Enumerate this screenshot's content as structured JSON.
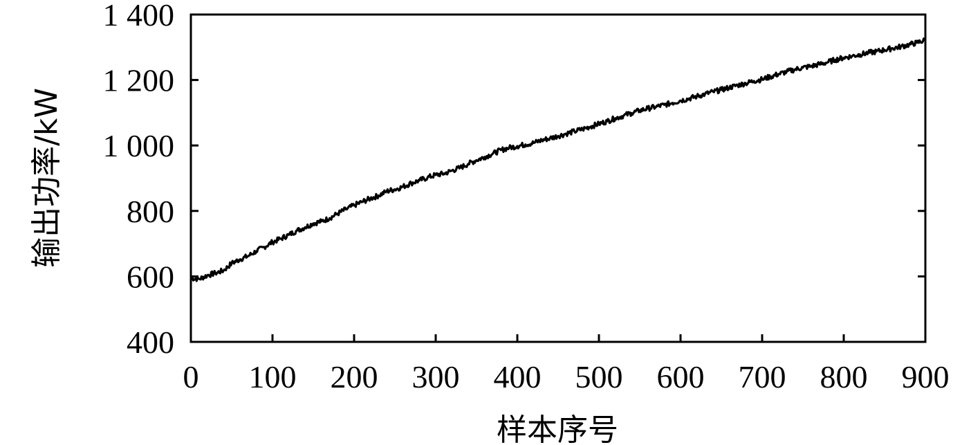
{
  "chart_data": {
    "type": "line",
    "title": "",
    "xlabel": "样本序号",
    "ylabel": "输出功率/kW",
    "xlim": [
      0,
      900
    ],
    "ylim": [
      400,
      1400
    ],
    "xticks": [
      0,
      100,
      200,
      300,
      400,
      500,
      600,
      700,
      800,
      900
    ],
    "yticks": [
      400,
      600,
      800,
      1000,
      1200,
      1400
    ],
    "xtick_labels": [
      "0",
      "100",
      "200",
      "300",
      "400",
      "500",
      "600",
      "700",
      "800",
      "900"
    ],
    "ytick_labels": [
      "400",
      "600",
      "800",
      "1 000",
      "1 200",
      "1 400"
    ],
    "grid": false,
    "line_color": "#000000",
    "series": [
      {
        "x": [
          0,
          10,
          20,
          30,
          40,
          50,
          60,
          70,
          80,
          90,
          100,
          110,
          120,
          130,
          140,
          150,
          160,
          170,
          180,
          190,
          200,
          210,
          220,
          230,
          240,
          250,
          260,
          270,
          280,
          290,
          300,
          310,
          320,
          330,
          340,
          350,
          360,
          370,
          380,
          390,
          400,
          410,
          420,
          430,
          440,
          450,
          460,
          470,
          480,
          490,
          500,
          510,
          520,
          530,
          540,
          550,
          560,
          570,
          580,
          590,
          600,
          610,
          620,
          630,
          640,
          650,
          660,
          670,
          680,
          690,
          700,
          710,
          720,
          730,
          740,
          750,
          760,
          770,
          780,
          790,
          800,
          810,
          820,
          830,
          840,
          850,
          860,
          870,
          880,
          890,
          900
        ],
        "values": [
          595,
          592,
          603,
          610,
          618,
          640,
          652,
          662,
          677,
          690,
          705,
          715,
          727,
          740,
          750,
          762,
          768,
          778,
          792,
          805,
          817,
          828,
          838,
          847,
          860,
          866,
          874,
          885,
          893,
          902,
          910,
          914,
          923,
          932,
          944,
          955,
          965,
          975,
          986,
          993,
          998,
          1003,
          1008,
          1016,
          1022,
          1029,
          1036,
          1043,
          1050,
          1058,
          1066,
          1074,
          1083,
          1091,
          1099,
          1107,
          1113,
          1118,
          1124,
          1130,
          1137,
          1143,
          1150,
          1157,
          1164,
          1170,
          1177,
          1184,
          1190,
          1197,
          1202,
          1210,
          1218,
          1225,
          1232,
          1238,
          1242,
          1248,
          1254,
          1262,
          1268,
          1273,
          1278,
          1283,
          1287,
          1292,
          1297,
          1302,
          1308,
          1314,
          1322
        ]
      }
    ]
  }
}
